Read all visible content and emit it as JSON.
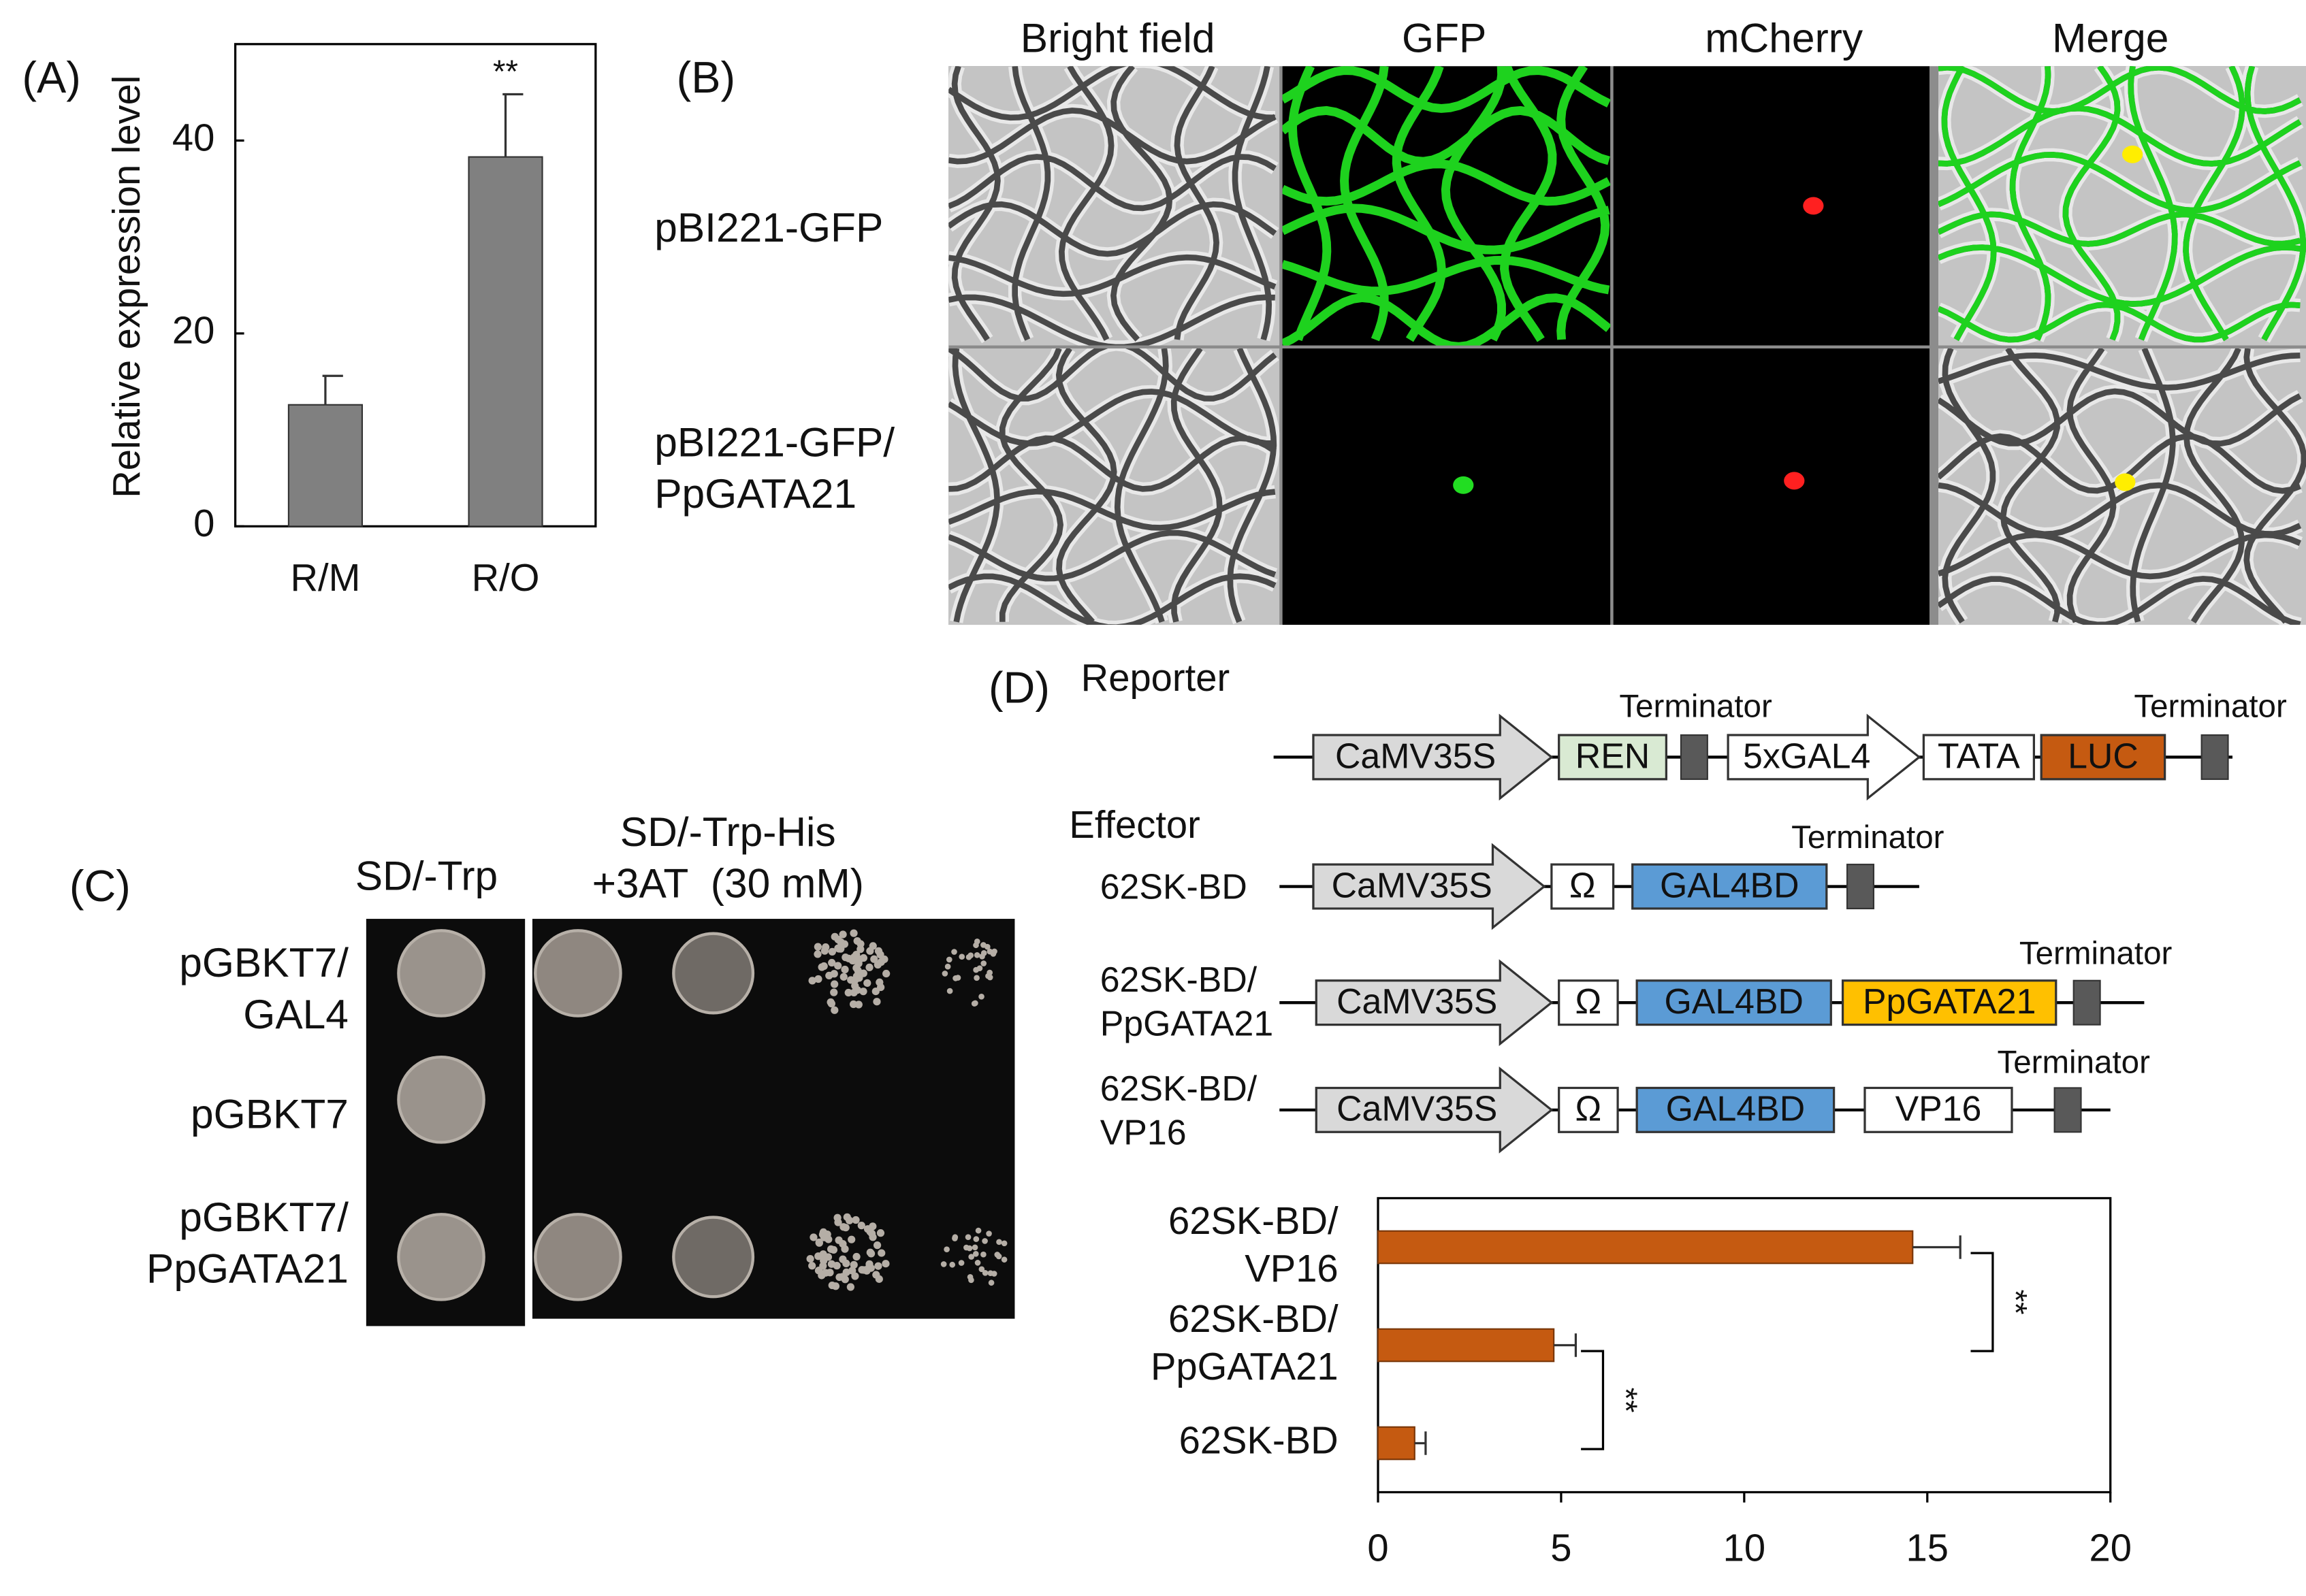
{
  "chart_data": [
    {
      "type": "bar",
      "panel_label": "(A)",
      "categories": [
        "R/M",
        "R/O"
      ],
      "values": [
        12.6,
        38.3
      ],
      "errors": [
        3.0,
        6.5
      ],
      "significance": [
        "**"
      ],
      "ylabel": "Relative expression level",
      "ylim": [
        0,
        50
      ],
      "yticks": [
        0,
        20,
        40
      ],
      "color": "#808080"
    },
    {
      "type": "hbar",
      "categories": [
        "62SK-BD/\nVP16",
        "62SK-BD/\nPpGATA21",
        "62SK-BD"
      ],
      "values": [
        14.6,
        4.8,
        1.0
      ],
      "errors": [
        1.3,
        0.6,
        0.3
      ],
      "significance": [
        "**",
        "**"
      ],
      "xlim": [
        0,
        20
      ],
      "xticks": [
        0,
        5,
        10,
        15,
        20
      ],
      "color": "#c55a11"
    }
  ],
  "panel_b": {
    "label": "(B)",
    "columns": [
      "Bright field",
      "GFP",
      "mCherry",
      "Merge"
    ],
    "rows": [
      "pBI221-GFP",
      "pBI221-GFP/\nPpGATA21"
    ]
  },
  "panel_c": {
    "label": "(C)",
    "media": [
      "SD/-Trp",
      "SD/-Trp-His\n+3AT  (30 mM)"
    ],
    "rows": [
      "pGBKT7/\nGAL4",
      "pGBKT7",
      "pGBKT7/\nPpGATA21"
    ]
  },
  "panel_d": {
    "label": "(D)",
    "reporter_heading": "Reporter",
    "effector_heading": "Effector",
    "constructs": [
      {
        "parts": [
          "CaMV35S",
          "REN",
          "5xGAL4",
          "TATA",
          "LUC"
        ],
        "terminators": [
          "Terminator",
          "Terminator"
        ]
      },
      {
        "name": "62SK-BD",
        "parts": [
          "CaMV35S",
          "Ω",
          "GAL4BD"
        ],
        "terminators": [
          "Terminator"
        ]
      },
      {
        "name": "62SK-BD/\nPpGATA21",
        "parts": [
          "CaMV35S",
          "Ω",
          "GAL4BD",
          "PpGATA21"
        ],
        "terminators": [
          "Terminator"
        ]
      },
      {
        "name": "62SK-BD/\nVP16",
        "parts": [
          "CaMV35S",
          "Ω",
          "GAL4BD",
          "VP16"
        ],
        "terminators": [
          "Terminator"
        ]
      }
    ]
  }
}
